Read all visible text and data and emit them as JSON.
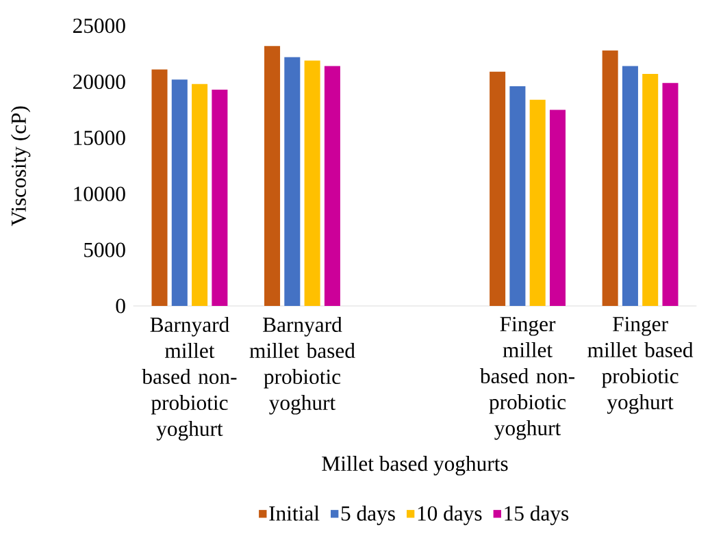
{
  "chart_data": {
    "type": "bar",
    "xlabel": "Millet based yoghurts",
    "ylabel": "Viscosity (cP)",
    "categories": [
      "Barnyard millet based non-probiotic yoghurt",
      "Barnyard millet based probiotic yoghurt",
      null,
      "Finger millet based non-probiotic yoghurt",
      "Finger millet based probiotic yoghurt"
    ],
    "series": [
      {
        "name": "Initial",
        "color": "#c55a11",
        "values": [
          21100,
          23200,
          null,
          20900,
          22800
        ]
      },
      {
        "name": "5 days",
        "color": "#4472c4",
        "values": [
          20200,
          22200,
          null,
          19600,
          21400
        ]
      },
      {
        "name": "10 days",
        "color": "#ffc000",
        "values": [
          19800,
          21900,
          null,
          18400,
          20700
        ]
      },
      {
        "name": "15 days",
        "color": "#cc0099",
        "values": [
          19300,
          21400,
          null,
          17500,
          19900
        ]
      }
    ],
    "ylim": [
      0,
      25000
    ],
    "yticks": [
      0,
      5000,
      10000,
      15000,
      20000,
      25000
    ],
    "legend": "bottom"
  }
}
